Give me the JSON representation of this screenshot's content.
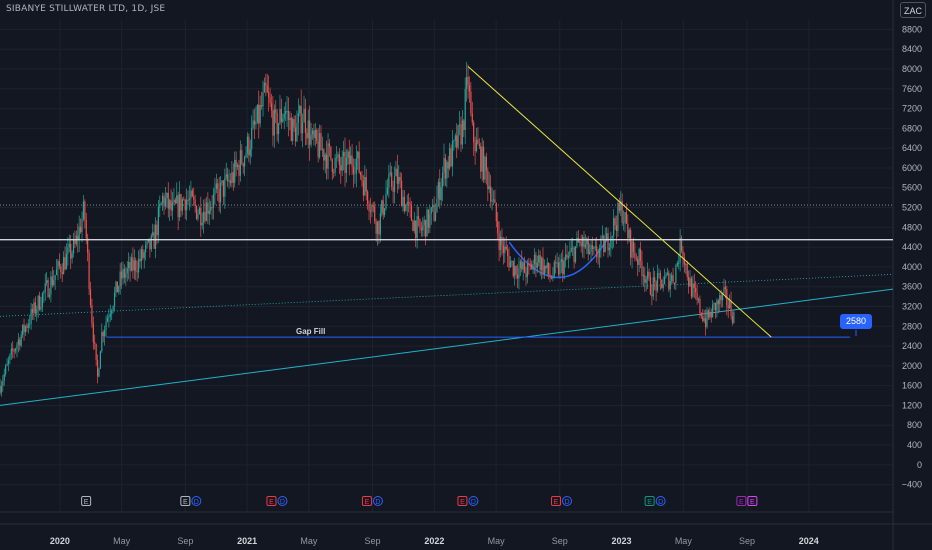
{
  "header": {
    "symbol_title": "SIBANYE STILLWATER LTD, 1D, JSE",
    "currency": "ZAC"
  },
  "chart_data": {
    "type": "candlestick",
    "title": "SIBANYE STILLWATER LTD, 1D, JSE",
    "y_ticks": [
      8800,
      8400,
      8000,
      7600,
      7200,
      6800,
      6400,
      6000,
      5600,
      5200,
      4800,
      4400,
      4000,
      3600,
      3200,
      2800,
      2400,
      2000,
      1600,
      1200,
      800,
      400,
      0,
      -400
    ],
    "y_tick_labels": [
      "8800",
      "8400",
      "8000",
      "7600",
      "7200",
      "6800",
      "6400",
      "6000",
      "5600",
      "5200",
      "4800",
      "4400",
      "4000",
      "3600",
      "3200",
      "2800",
      "2400",
      "2000",
      "1600",
      "1200",
      "800",
      "400",
      "0",
      "−400"
    ],
    "ylim": [
      -600,
      9000
    ],
    "x_ticks": [
      "2020",
      "May",
      "Sep",
      "2021",
      "May",
      "Sep",
      "2022",
      "May",
      "Sep",
      "2023",
      "May",
      "Sep",
      "2024"
    ],
    "x_tick_years": [
      2020.0,
      2020.33,
      2020.67,
      2021.0,
      2021.33,
      2021.67,
      2022.0,
      2022.33,
      2022.67,
      2023.0,
      2023.33,
      2023.67,
      2024.0
    ],
    "xlim": [
      2019.68,
      2024.45
    ],
    "price_path": [
      [
        2019.68,
        1600
      ],
      [
        2019.75,
        2300
      ],
      [
        2019.83,
        2900
      ],
      [
        2019.92,
        3500
      ],
      [
        2020.0,
        4000
      ],
      [
        2020.08,
        4400
      ],
      [
        2020.13,
        5150
      ],
      [
        2020.17,
        3000
      ],
      [
        2020.2,
        1700
      ],
      [
        2020.22,
        2600
      ],
      [
        2020.27,
        3200
      ],
      [
        2020.33,
        3800
      ],
      [
        2020.42,
        4100
      ],
      [
        2020.5,
        4500
      ],
      [
        2020.55,
        5400
      ],
      [
        2020.6,
        5100
      ],
      [
        2020.67,
        5400
      ],
      [
        2020.75,
        5100
      ],
      [
        2020.83,
        5400
      ],
      [
        2020.92,
        5800
      ],
      [
        2021.0,
        6400
      ],
      [
        2021.06,
        7000
      ],
      [
        2021.1,
        7500
      ],
      [
        2021.15,
        6800
      ],
      [
        2021.2,
        7200
      ],
      [
        2021.25,
        6700
      ],
      [
        2021.3,
        7100
      ],
      [
        2021.35,
        6500
      ],
      [
        2021.42,
        6300
      ],
      [
        2021.5,
        6000
      ],
      [
        2021.58,
        6200
      ],
      [
        2021.65,
        5400
      ],
      [
        2021.7,
        4800
      ],
      [
        2021.75,
        5600
      ],
      [
        2021.8,
        5800
      ],
      [
        2021.85,
        5200
      ],
      [
        2021.92,
        4700
      ],
      [
        2022.0,
        5100
      ],
      [
        2022.05,
        6000
      ],
      [
        2022.1,
        6300
      ],
      [
        2022.15,
        6800
      ],
      [
        2022.18,
        7800
      ],
      [
        2022.2,
        6700
      ],
      [
        2022.25,
        6200
      ],
      [
        2022.3,
        5600
      ],
      [
        2022.35,
        4500
      ],
      [
        2022.42,
        4000
      ],
      [
        2022.5,
        3900
      ],
      [
        2022.55,
        4200
      ],
      [
        2022.62,
        3800
      ],
      [
        2022.7,
        4100
      ],
      [
        2022.78,
        4500
      ],
      [
        2022.85,
        4200
      ],
      [
        2022.92,
        4500
      ],
      [
        2023.0,
        5200
      ],
      [
        2023.05,
        4400
      ],
      [
        2023.1,
        4100
      ],
      [
        2023.15,
        3600
      ],
      [
        2023.22,
        3700
      ],
      [
        2023.28,
        3800
      ],
      [
        2023.32,
        4500
      ],
      [
        2023.36,
        3700
      ],
      [
        2023.4,
        3300
      ],
      [
        2023.45,
        2900
      ],
      [
        2023.5,
        3200
      ],
      [
        2023.55,
        3400
      ],
      [
        2023.6,
        3000
      ]
    ],
    "annotations": {
      "resistance_price": 4550,
      "dotted_level_price": 5250,
      "gap_fill": {
        "label": "Gap Fill",
        "price": 2580,
        "x_start": 2020.25,
        "x_end": 2024.22
      },
      "price_callout": "2580",
      "downtrend_line": {
        "from": [
          2022.18,
          8050
        ],
        "to": [
          2023.8,
          2580
        ]
      },
      "uptrend_line": {
        "from": [
          2019.68,
          1200
        ],
        "to": [
          2024.45,
          3550
        ]
      },
      "dotted_trend_line": {
        "from": [
          2019.68,
          3000
        ],
        "to": [
          2024.45,
          3850
        ]
      },
      "rounded_bottom": {
        "from": [
          2022.4,
          4500
        ],
        "bottom": [
          2022.68,
          3550
        ],
        "to": [
          2022.93,
          4600
        ]
      }
    },
    "events": [
      {
        "x": 2020.14,
        "labels": [
          "E"
        ],
        "colors": [
          "#b2b5be"
        ]
      },
      {
        "x": 2020.67,
        "labels": [
          "E",
          "D"
        ],
        "colors": [
          "#b2b5be",
          "#2962ff"
        ]
      },
      {
        "x": 2021.13,
        "labels": [
          "E",
          "D"
        ],
        "colors": [
          "#f23645",
          "#2962ff"
        ]
      },
      {
        "x": 2021.64,
        "labels": [
          "E",
          "D"
        ],
        "colors": [
          "#f23645",
          "#2962ff"
        ]
      },
      {
        "x": 2022.15,
        "labels": [
          "E",
          "D"
        ],
        "colors": [
          "#f23645",
          "#2962ff"
        ]
      },
      {
        "x": 2022.65,
        "labels": [
          "E",
          "D"
        ],
        "colors": [
          "#f23645",
          "#2962ff"
        ]
      },
      {
        "x": 2023.15,
        "labels": [
          "E",
          "D"
        ],
        "colors": [
          "#089981",
          "#2962ff"
        ]
      },
      {
        "x": 2023.64,
        "labels": [
          "E",
          "E"
        ],
        "colors": [
          "#9c27b0",
          "#e040fb"
        ]
      }
    ],
    "colors": {
      "background": "#131722",
      "up_candle": "#26a69a",
      "down_candle": "#ef5350",
      "resistance_line": "#d1d4dc",
      "downtrend_line": "#e8e83c",
      "uptrend_line": "#22b3c7",
      "gap_fill_line": "#2962ff",
      "rounded_bottom": "#2962ff",
      "grid": "#1e222d"
    },
    "grid": true
  }
}
